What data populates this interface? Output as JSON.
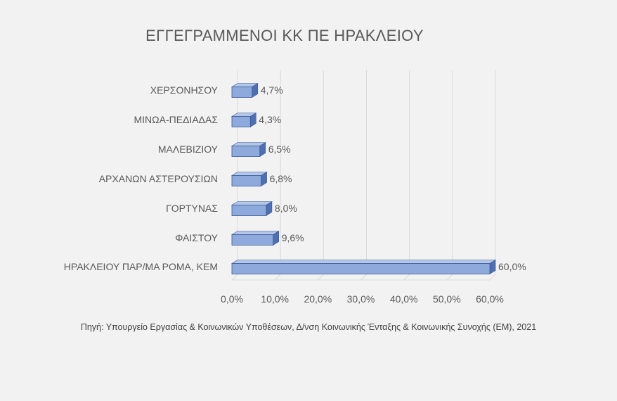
{
  "chart_data": {
    "type": "bar",
    "orientation": "horizontal",
    "title": "ΕΓΓΕΓΡΑΜΜΕΝΟΙ ΚΚ ΠΕ ΗΡΑΚΛΕΙΟΥ",
    "categories": [
      "ΧΕΡΣΟΝΗΣΟΥ",
      "ΜΙΝΩΑ-ΠΕΔΙΑΔΑΣ",
      "ΜΑΛΕΒΙΖΙΟΥ",
      "ΑΡΧΑΝΩΝ ΑΣΤΕΡΟΥΣΙΩΝ",
      "ΓΟΡΤΥΝΑΣ",
      "ΦΑΙΣΤΟΥ",
      "ΗΡΑΚΛΕΙΟΥ ΠΑΡ/ΜΑ ΡΟΜΑ, ΚΕΜ"
    ],
    "values": [
      4.7,
      4.3,
      6.5,
      6.8,
      8.0,
      9.6,
      60.0
    ],
    "data_labels": [
      "4,7%",
      "4,3%",
      "6,5%",
      "6,8%",
      "8,0%",
      "9,6%",
      "60,0%"
    ],
    "xlim": [
      0,
      60
    ],
    "x_ticks": [
      0,
      10,
      20,
      30,
      40,
      50,
      60
    ],
    "x_tick_labels": [
      "0,0%",
      "10,0%",
      "20,0%",
      "30,0%",
      "40,0%",
      "50,0%",
      "60,0%"
    ],
    "xlabel": "",
    "ylabel": "",
    "grid": true,
    "legend": "none",
    "source": "Πηγή: Υπουργείο Εργασίας & Κοινωνικών Υποθέσεων, Δ/νση Κοινωνικής Ένταξης & Κοινωνικής Συνοχής (ΕΜ), 2021"
  },
  "colors": {
    "bar_front": "#8ea9db",
    "bar_top": "#b4c7e7",
    "bar_side": "#4f6fb0",
    "bar_edge": "#3b5998",
    "grid": "#d9d9d9",
    "text": "#595959",
    "background": "#f2f2f2"
  }
}
